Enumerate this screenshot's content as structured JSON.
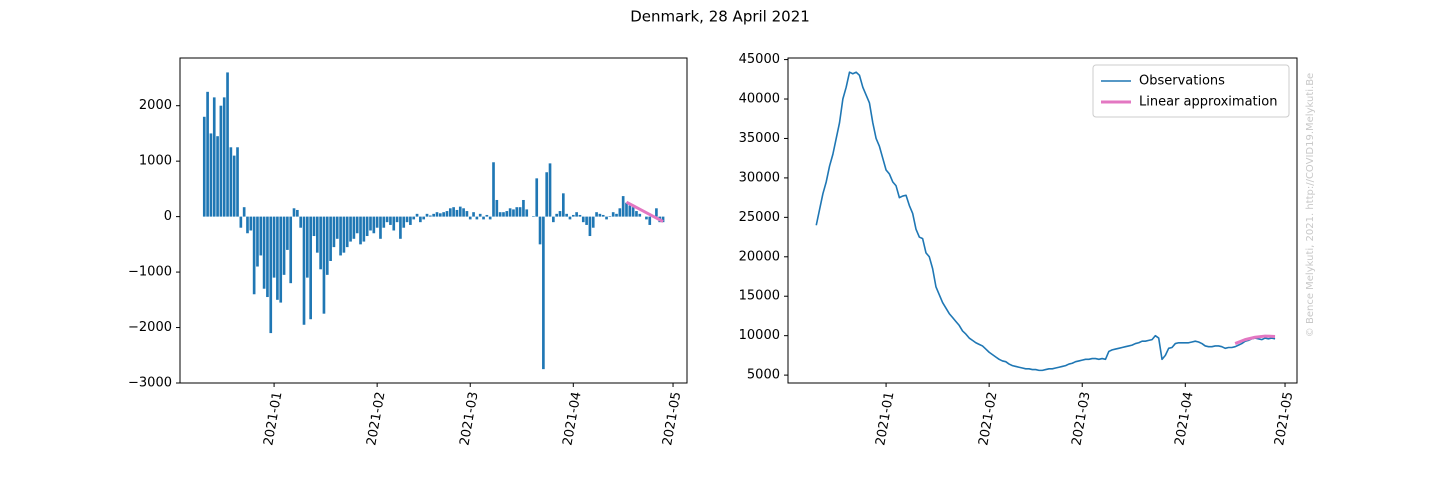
{
  "title": "Denmark, 28 April 2021",
  "watermark": "© Bence Melykuti, 2021. http://COVID19.Melykuti.Be",
  "chart_data": [
    {
      "type": "bar",
      "color": "#1f77b4",
      "x": [
        -21,
        -20,
        -19,
        -18,
        -17,
        -16,
        -15,
        -14,
        -13,
        -12,
        -11,
        -10,
        -9,
        -8,
        -7,
        -6,
        -5,
        -4,
        -3,
        -2,
        -1,
        0,
        1,
        2,
        3,
        4,
        5,
        6,
        7,
        8,
        9,
        10,
        11,
        12,
        13,
        14,
        15,
        16,
        17,
        18,
        19,
        20,
        21,
        22,
        23,
        24,
        25,
        26,
        27,
        28,
        29,
        30,
        31,
        32,
        33,
        34,
        35,
        36,
        37,
        38,
        39,
        40,
        41,
        42,
        43,
        44,
        45,
        46,
        47,
        48,
        49,
        50,
        51,
        52,
        53,
        54,
        55,
        56,
        57,
        58,
        59,
        60,
        61,
        62,
        63,
        64,
        65,
        66,
        67,
        68,
        69,
        70,
        71,
        72,
        73,
        74,
        75,
        76,
        77,
        78,
        79,
        80,
        81,
        82,
        83,
        84,
        85,
        86,
        87,
        88,
        89,
        90,
        91,
        92,
        93,
        94,
        95,
        96,
        97,
        98,
        99,
        100,
        101,
        102,
        103,
        104,
        105,
        106,
        107,
        108,
        109,
        110,
        111,
        112,
        113,
        114,
        115,
        116,
        117
      ],
      "values": [
        1800,
        2250,
        1500,
        2150,
        1450,
        2000,
        2150,
        2600,
        1250,
        1100,
        1250,
        -200,
        170,
        -300,
        -250,
        -1400,
        -900,
        -700,
        -1300,
        -1450,
        -2100,
        -1100,
        -1500,
        -1550,
        -1050,
        -600,
        -1200,
        150,
        120,
        -200,
        -1950,
        -1100,
        -1850,
        -350,
        -650,
        -950,
        -1750,
        -1050,
        -800,
        -550,
        -400,
        -700,
        -650,
        -550,
        -450,
        -400,
        -300,
        -500,
        -450,
        -350,
        -250,
        -300,
        -200,
        -400,
        -200,
        -100,
        -150,
        -250,
        -100,
        -400,
        -200,
        -100,
        -150,
        -50,
        50,
        -100,
        -50,
        50,
        20,
        50,
        80,
        60,
        80,
        100,
        150,
        170,
        120,
        180,
        150,
        100,
        -50,
        80,
        -50,
        50,
        -50,
        30,
        -50,
        980,
        300,
        80,
        80,
        100,
        150,
        130,
        170,
        170,
        300,
        130,
        0,
        10,
        690,
        -500,
        -2750,
        800,
        960,
        -100,
        50,
        100,
        420,
        50,
        -50,
        30,
        80,
        30,
        -100,
        -150,
        -350,
        -200,
        80,
        50,
        30,
        -50,
        10,
        80,
        50,
        150,
        370,
        250,
        200,
        170,
        100,
        50,
        0,
        -50,
        -150,
        20,
        150,
        -100,
        -100
      ],
      "fit": {
        "color": "#e377c2",
        "x": [
          106,
          117
        ],
        "values": [
          260,
          -90
        ]
      },
      "xlim": [
        -28.3,
        124.2
      ],
      "ylim": [
        -3000,
        2860
      ],
      "xticks": [
        {
          "value": 0,
          "label": "2021-01"
        },
        {
          "value": 31,
          "label": "2021-02"
        },
        {
          "value": 59,
          "label": "2021-03"
        },
        {
          "value": 90,
          "label": "2021-04"
        },
        {
          "value": 120,
          "label": "2021-05"
        }
      ],
      "yticks": [
        {
          "value": -3000,
          "label": "−3000"
        },
        {
          "value": -2000,
          "label": "−2000"
        },
        {
          "value": -1000,
          "label": "−1000"
        },
        0,
        1000,
        2000
      ]
    },
    {
      "type": "line",
      "legend": "upper right",
      "series": [
        {
          "name": "Observations",
          "color": "#1f77b4",
          "x": [
            -21,
            -20,
            -19,
            -18,
            -17,
            -16,
            -15,
            -14,
            -13,
            -12,
            -11,
            -10,
            -9,
            -8,
            -7,
            -6,
            -5,
            -4,
            -3,
            -2,
            -1,
            0,
            1,
            2,
            3,
            4,
            5,
            6,
            7,
            8,
            9,
            10,
            11,
            12,
            13,
            14,
            15,
            16,
            17,
            18,
            19,
            20,
            21,
            22,
            23,
            24,
            25,
            26,
            27,
            28,
            29,
            30,
            31,
            32,
            33,
            34,
            35,
            36,
            37,
            38,
            39,
            40,
            41,
            42,
            43,
            44,
            45,
            46,
            47,
            48,
            49,
            50,
            51,
            52,
            53,
            54,
            55,
            56,
            57,
            58,
            59,
            60,
            61,
            62,
            63,
            64,
            65,
            66,
            67,
            68,
            69,
            70,
            71,
            72,
            73,
            74,
            75,
            76,
            77,
            78,
            79,
            80,
            81,
            82,
            83,
            84,
            85,
            86,
            87,
            88,
            89,
            90,
            91,
            92,
            93,
            94,
            95,
            96,
            97,
            98,
            99,
            100,
            101,
            102,
            103,
            104,
            105,
            106,
            107,
            108,
            109,
            110,
            111,
            112,
            113,
            114,
            115,
            116,
            117
          ],
          "values": [
            24000,
            26000,
            28000,
            29500,
            31500,
            33000,
            35000,
            37000,
            40000,
            41500,
            43400,
            43200,
            43400,
            43000,
            41500,
            40500,
            39500,
            37000,
            35000,
            34000,
            32500,
            31000,
            30500,
            29500,
            29000,
            27500,
            27700,
            27800,
            26500,
            25500,
            23500,
            22500,
            22300,
            20500,
            20000,
            18500,
            16200,
            15200,
            14200,
            13500,
            12800,
            12300,
            11800,
            11300,
            10600,
            10200,
            9700,
            9400,
            9100,
            8900,
            8700,
            8300,
            7900,
            7600,
            7300,
            7000,
            6800,
            6700,
            6400,
            6200,
            6100,
            6000,
            5900,
            5800,
            5800,
            5700,
            5700,
            5600,
            5600,
            5700,
            5800,
            5800,
            5900,
            6000,
            6100,
            6200,
            6400,
            6500,
            6700,
            6800,
            6900,
            7000,
            7000,
            7100,
            7100,
            7000,
            7100,
            7000,
            8000,
            8200,
            8300,
            8400,
            8500,
            8600,
            8700,
            8800,
            9000,
            9100,
            9300,
            9300,
            9400,
            9500,
            10000,
            9700,
            7000,
            7500,
            8400,
            8500,
            9000,
            9100,
            9100,
            9100,
            9100,
            9200,
            9300,
            9200,
            9000,
            8700,
            8600,
            8600,
            8700,
            8700,
            8600,
            8400,
            8500,
            8500,
            8600,
            8800,
            9000,
            9300,
            9400,
            9600,
            9700,
            9600,
            9500,
            9700,
            9600,
            9700,
            9600
          ]
        },
        {
          "name": "Linear approximation",
          "color": "#e377c2",
          "x": [
            105,
            108,
            111,
            114,
            117
          ],
          "values": [
            9000,
            9500,
            9800,
            9950,
            9900
          ]
        }
      ],
      "xlim": [
        -29.5,
        123.6
      ],
      "ylim": [
        4000,
        45200
      ],
      "xticks": [
        {
          "value": 0,
          "label": "2021-01"
        },
        {
          "value": 31,
          "label": "2021-02"
        },
        {
          "value": 59,
          "label": "2021-03"
        },
        {
          "value": 90,
          "label": "2021-04"
        },
        {
          "value": 120,
          "label": "2021-05"
        }
      ],
      "yticks": [
        5000,
        10000,
        15000,
        20000,
        25000,
        30000,
        35000,
        40000,
        45000
      ]
    }
  ]
}
